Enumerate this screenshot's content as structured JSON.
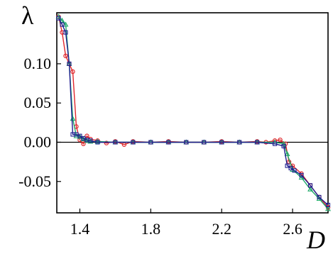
{
  "chart_data": {
    "type": "line",
    "title": "",
    "xlabel": "D",
    "ylabel": "λ",
    "xlim": [
      1.27,
      2.8
    ],
    "ylim": [
      -0.09,
      0.165
    ],
    "x_ticks": [
      "1.4",
      "1.8",
      "2.2",
      "2.6"
    ],
    "x_tick_values": [
      1.4,
      1.8,
      2.2,
      2.6
    ],
    "y_ticks": [
      "0.10",
      "0.05",
      "0.00",
      "-0.05"
    ],
    "y_tick_values": [
      0.1,
      0.05,
      0.0,
      -0.05
    ],
    "zero_line": true,
    "grid": false,
    "legend": "none",
    "series": [
      {
        "color": "#e0282d",
        "marker": "circle",
        "x": [
          1.28,
          1.3,
          1.32,
          1.34,
          1.36,
          1.38,
          1.4,
          1.42,
          1.44,
          1.46,
          1.5,
          1.55,
          1.6,
          1.65,
          1.7,
          1.8,
          1.9,
          2.0,
          2.1,
          2.2,
          2.3,
          2.4,
          2.45,
          2.5,
          2.53,
          2.56,
          2.58,
          2.6,
          2.65,
          2.7,
          2.75,
          2.8
        ],
        "y": [
          0.16,
          0.14,
          0.11,
          0.1,
          0.09,
          0.02,
          0.003,
          -0.002,
          0.008,
          0.004,
          0.002,
          -0.001,
          0.001,
          -0.003,
          0.001,
          0.0,
          0.001,
          0.0,
          0.0,
          0.001,
          0.0,
          0.001,
          0.0,
          0.002,
          0.003,
          -0.002,
          -0.025,
          -0.03,
          -0.04,
          -0.055,
          -0.07,
          -0.083
        ]
      },
      {
        "color": "#1fa86a",
        "marker": "triangle",
        "x": [
          1.28,
          1.3,
          1.32,
          1.34,
          1.36,
          1.38,
          1.4,
          1.42,
          1.44,
          1.46,
          1.5,
          1.6,
          1.7,
          1.8,
          1.9,
          2.0,
          2.1,
          2.2,
          2.3,
          2.4,
          2.5,
          2.55,
          2.57,
          2.6,
          2.65,
          2.7,
          2.75,
          2.8
        ],
        "y": [
          0.16,
          0.155,
          0.15,
          0.1,
          0.03,
          0.008,
          0.007,
          0.004,
          0.002,
          0.001,
          0.001,
          0.0,
          0.0,
          0.0,
          0.0,
          0.0,
          0.0,
          0.0,
          0.0,
          0.0,
          0.0,
          -0.002,
          -0.015,
          -0.035,
          -0.045,
          -0.06,
          -0.072,
          -0.085
        ]
      },
      {
        "color": "#20208f",
        "marker": "square",
        "x": [
          1.28,
          1.3,
          1.32,
          1.34,
          1.36,
          1.38,
          1.4,
          1.42,
          1.44,
          1.46,
          1.5,
          1.6,
          1.7,
          1.8,
          1.9,
          2.0,
          2.1,
          2.2,
          2.3,
          2.4,
          2.5,
          2.55,
          2.57,
          2.59,
          2.61,
          2.65,
          2.7,
          2.75,
          2.8
        ],
        "y": [
          0.158,
          0.15,
          0.14,
          0.1,
          0.01,
          0.01,
          0.008,
          0.005,
          0.003,
          0.002,
          0.0,
          0.0,
          0.0,
          0.0,
          0.0,
          0.0,
          0.0,
          0.0,
          0.0,
          0.0,
          -0.002,
          -0.005,
          -0.03,
          -0.033,
          -0.036,
          -0.042,
          -0.055,
          -0.07,
          -0.08
        ]
      }
    ]
  }
}
